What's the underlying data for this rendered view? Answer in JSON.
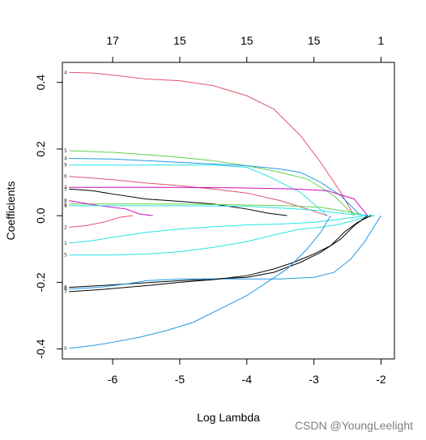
{
  "chart_data": {
    "type": "line",
    "xlabel": "Log Lambda",
    "ylabel": "Coefficients",
    "xlim": [
      -6.75,
      -1.8
    ],
    "ylim": [
      -0.43,
      0.46
    ],
    "x_ticks": [
      -6,
      -5,
      -4,
      -3,
      -2
    ],
    "x_tick_labels": [
      "-6",
      "-5",
      "-4",
      "-3",
      "-2"
    ],
    "y_ticks": [
      -0.4,
      -0.2,
      0.0,
      0.2,
      0.4
    ],
    "y_tick_labels": [
      "-0.4",
      "-0.2",
      "0.0",
      "0.2",
      "0.4"
    ],
    "top_axis_ticks": [
      -6,
      -5,
      -4,
      -3,
      -2
    ],
    "top_axis_labels": [
      "17",
      "15",
      "15",
      "15",
      "1"
    ],
    "grid": false,
    "series": [
      {
        "label": "4",
        "color": "#DF536B",
        "points": [
          [
            -6.65,
            0.43
          ],
          [
            -6.3,
            0.428
          ],
          [
            -5.9,
            0.42
          ],
          [
            -5.5,
            0.41
          ],
          [
            -5.0,
            0.405
          ],
          [
            -4.5,
            0.39
          ],
          [
            -4.0,
            0.36
          ],
          [
            -3.6,
            0.32
          ],
          [
            -3.2,
            0.24
          ],
          [
            -2.9,
            0.16
          ],
          [
            -2.6,
            0.07
          ],
          [
            -2.4,
            0.0
          ]
        ]
      },
      {
        "label": "5",
        "color": "#61D04F",
        "points": [
          [
            -6.65,
            0.195
          ],
          [
            -6.0,
            0.19
          ],
          [
            -5.5,
            0.183
          ],
          [
            -5.0,
            0.175
          ],
          [
            -4.5,
            0.165
          ],
          [
            -4.0,
            0.15
          ],
          [
            -3.5,
            0.13
          ],
          [
            -3.1,
            0.11
          ],
          [
            -2.7,
            0.06
          ],
          [
            -2.4,
            0.0
          ]
        ]
      },
      {
        "label": "4",
        "color": "#2297E6",
        "points": [
          [
            -6.65,
            0.172
          ],
          [
            -6.0,
            0.17
          ],
          [
            -5.5,
            0.165
          ],
          [
            -5.0,
            0.16
          ],
          [
            -4.5,
            0.155
          ],
          [
            -4.0,
            0.15
          ],
          [
            -3.5,
            0.14
          ],
          [
            -3.2,
            0.13
          ],
          [
            -2.9,
            0.1
          ],
          [
            -2.6,
            0.06
          ],
          [
            -2.3,
            0.0
          ]
        ]
      },
      {
        "label": "9",
        "color": "#28E2E5",
        "points": [
          [
            -6.65,
            0.152
          ],
          [
            -6.0,
            0.152
          ],
          [
            -5.5,
            0.152
          ],
          [
            -5.0,
            0.152
          ],
          [
            -4.5,
            0.152
          ],
          [
            -4.0,
            0.145
          ],
          [
            -3.7,
            0.12
          ],
          [
            -3.2,
            0.07
          ],
          [
            -2.8,
            0.0
          ]
        ]
      },
      {
        "label": "6",
        "color": "#DF536B",
        "points": [
          [
            -6.65,
            0.118
          ],
          [
            -6.0,
            0.108
          ],
          [
            -5.5,
            0.098
          ],
          [
            -5.0,
            0.09
          ],
          [
            -4.5,
            0.08
          ],
          [
            -4.0,
            0.068
          ],
          [
            -3.5,
            0.045
          ],
          [
            -3.1,
            0.02
          ],
          [
            -2.8,
            0.0
          ]
        ]
      },
      {
        "label": "2",
        "color": "#CD0BBC",
        "points": [
          [
            -6.65,
            0.085
          ],
          [
            -6.0,
            0.085
          ],
          [
            -5.0,
            0.085
          ],
          [
            -4.0,
            0.083
          ],
          [
            -3.3,
            0.08
          ],
          [
            -2.8,
            0.075
          ],
          [
            -2.4,
            0.05
          ],
          [
            -2.2,
            0.0
          ]
        ]
      },
      {
        "label": "3",
        "color": "#000000",
        "points": [
          [
            -6.65,
            0.08
          ],
          [
            -6.3,
            0.075
          ],
          [
            -6.0,
            0.065
          ],
          [
            -5.5,
            0.05
          ],
          [
            -5.0,
            0.043
          ],
          [
            -4.5,
            0.035
          ],
          [
            -4.0,
            0.02
          ],
          [
            -3.7,
            0.008
          ],
          [
            -3.4,
            0.0
          ]
        ]
      },
      {
        "label": "1",
        "color": "#61D04F",
        "points": [
          [
            -6.65,
            0.035
          ],
          [
            -6.0,
            0.035
          ],
          [
            -5.0,
            0.035
          ],
          [
            -4.0,
            0.032
          ],
          [
            -3.4,
            0.03
          ],
          [
            -2.9,
            0.025
          ],
          [
            -2.5,
            0.012
          ],
          [
            -2.2,
            0.0
          ]
        ]
      },
      {
        "label": "8",
        "color": "#CD0BBC",
        "points": [
          [
            -6.65,
            0.045
          ],
          [
            -6.2,
            0.03
          ],
          [
            -5.8,
            0.02
          ],
          [
            -5.6,
            0.005
          ],
          [
            -5.4,
            0.0
          ]
        ]
      },
      {
        "label": "9",
        "color": "#28E2E5",
        "points": [
          [
            -6.65,
            0.03
          ],
          [
            -6.0,
            0.03
          ],
          [
            -5.0,
            0.03
          ],
          [
            -4.0,
            0.028
          ],
          [
            -3.4,
            0.022
          ],
          [
            -2.9,
            0.015
          ],
          [
            -2.5,
            0.005
          ],
          [
            -2.1,
            0.0
          ]
        ]
      },
      {
        "label": "2",
        "color": "#DF536B",
        "points": [
          [
            -6.65,
            -0.035
          ],
          [
            -6.4,
            -0.03
          ],
          [
            -6.1,
            -0.018
          ],
          [
            -5.9,
            -0.005
          ],
          [
            -5.7,
            0.0
          ]
        ]
      },
      {
        "label": "1",
        "color": "#28E2E5",
        "points": [
          [
            -6.65,
            -0.082
          ],
          [
            -6.3,
            -0.075
          ],
          [
            -6.0,
            -0.065
          ],
          [
            -5.5,
            -0.05
          ],
          [
            -5.0,
            -0.04
          ],
          [
            -4.5,
            -0.033
          ],
          [
            -4.0,
            -0.028
          ],
          [
            -3.5,
            -0.025
          ],
          [
            -3.0,
            -0.02
          ],
          [
            -2.6,
            -0.01
          ],
          [
            -2.2,
            0.0
          ]
        ]
      },
      {
        "label": "5",
        "color": "#28E2E5",
        "points": [
          [
            -6.65,
            -0.118
          ],
          [
            -6.0,
            -0.118
          ],
          [
            -5.5,
            -0.115
          ],
          [
            -5.0,
            -0.108
          ],
          [
            -4.5,
            -0.095
          ],
          [
            -4.0,
            -0.078
          ],
          [
            -3.6,
            -0.058
          ],
          [
            -3.2,
            -0.04
          ],
          [
            -2.9,
            -0.035
          ],
          [
            -2.6,
            -0.025
          ],
          [
            -2.3,
            -0.008
          ],
          [
            -2.1,
            0.0
          ]
        ]
      },
      {
        "label": "8",
        "color": "#000000",
        "points": [
          [
            -6.65,
            -0.215
          ],
          [
            -6.2,
            -0.21
          ],
          [
            -5.8,
            -0.205
          ],
          [
            -5.4,
            -0.2
          ],
          [
            -5.0,
            -0.195
          ],
          [
            -4.5,
            -0.19
          ],
          [
            -4.0,
            -0.185
          ],
          [
            -3.6,
            -0.17
          ],
          [
            -3.2,
            -0.14
          ],
          [
            -2.9,
            -0.11
          ],
          [
            -2.6,
            -0.07
          ],
          [
            -2.4,
            -0.03
          ],
          [
            -2.2,
            0.0
          ]
        ]
      },
      {
        "label": "6",
        "color": "#2297E6",
        "points": [
          [
            -6.65,
            -0.22
          ],
          [
            -6.2,
            -0.215
          ],
          [
            -5.8,
            -0.205
          ],
          [
            -5.5,
            -0.195
          ],
          [
            -5.0,
            -0.19
          ],
          [
            -4.5,
            -0.19
          ],
          [
            -4.0,
            -0.19
          ],
          [
            -3.5,
            -0.19
          ],
          [
            -3.0,
            -0.185
          ],
          [
            -2.7,
            -0.17
          ],
          [
            -2.45,
            -0.13
          ],
          [
            -2.25,
            -0.08
          ],
          [
            -2.0,
            0.0
          ]
        ]
      },
      {
        "label": "7",
        "color": "#000000",
        "points": [
          [
            -6.65,
            -0.228
          ],
          [
            -6.2,
            -0.222
          ],
          [
            -5.8,
            -0.215
          ],
          [
            -5.4,
            -0.208
          ],
          [
            -5.0,
            -0.2
          ],
          [
            -4.5,
            -0.192
          ],
          [
            -4.0,
            -0.18
          ],
          [
            -3.6,
            -0.16
          ],
          [
            -3.3,
            -0.14
          ],
          [
            -3.0,
            -0.115
          ],
          [
            -2.75,
            -0.09
          ],
          [
            -2.55,
            -0.05
          ],
          [
            -2.35,
            -0.02
          ],
          [
            -2.15,
            0.0
          ]
        ]
      },
      {
        "label": "0",
        "color": "#2297E6",
        "points": [
          [
            -6.65,
            -0.398
          ],
          [
            -6.3,
            -0.39
          ],
          [
            -6.0,
            -0.38
          ],
          [
            -5.6,
            -0.365
          ],
          [
            -5.2,
            -0.345
          ],
          [
            -4.8,
            -0.32
          ],
          [
            -4.4,
            -0.28
          ],
          [
            -4.0,
            -0.24
          ],
          [
            -3.7,
            -0.2
          ],
          [
            -3.4,
            -0.16
          ],
          [
            -3.1,
            -0.1
          ],
          [
            -2.9,
            -0.05
          ],
          [
            -2.75,
            0.0
          ]
        ]
      }
    ]
  },
  "watermark": "CSDN @YoungLeelight"
}
